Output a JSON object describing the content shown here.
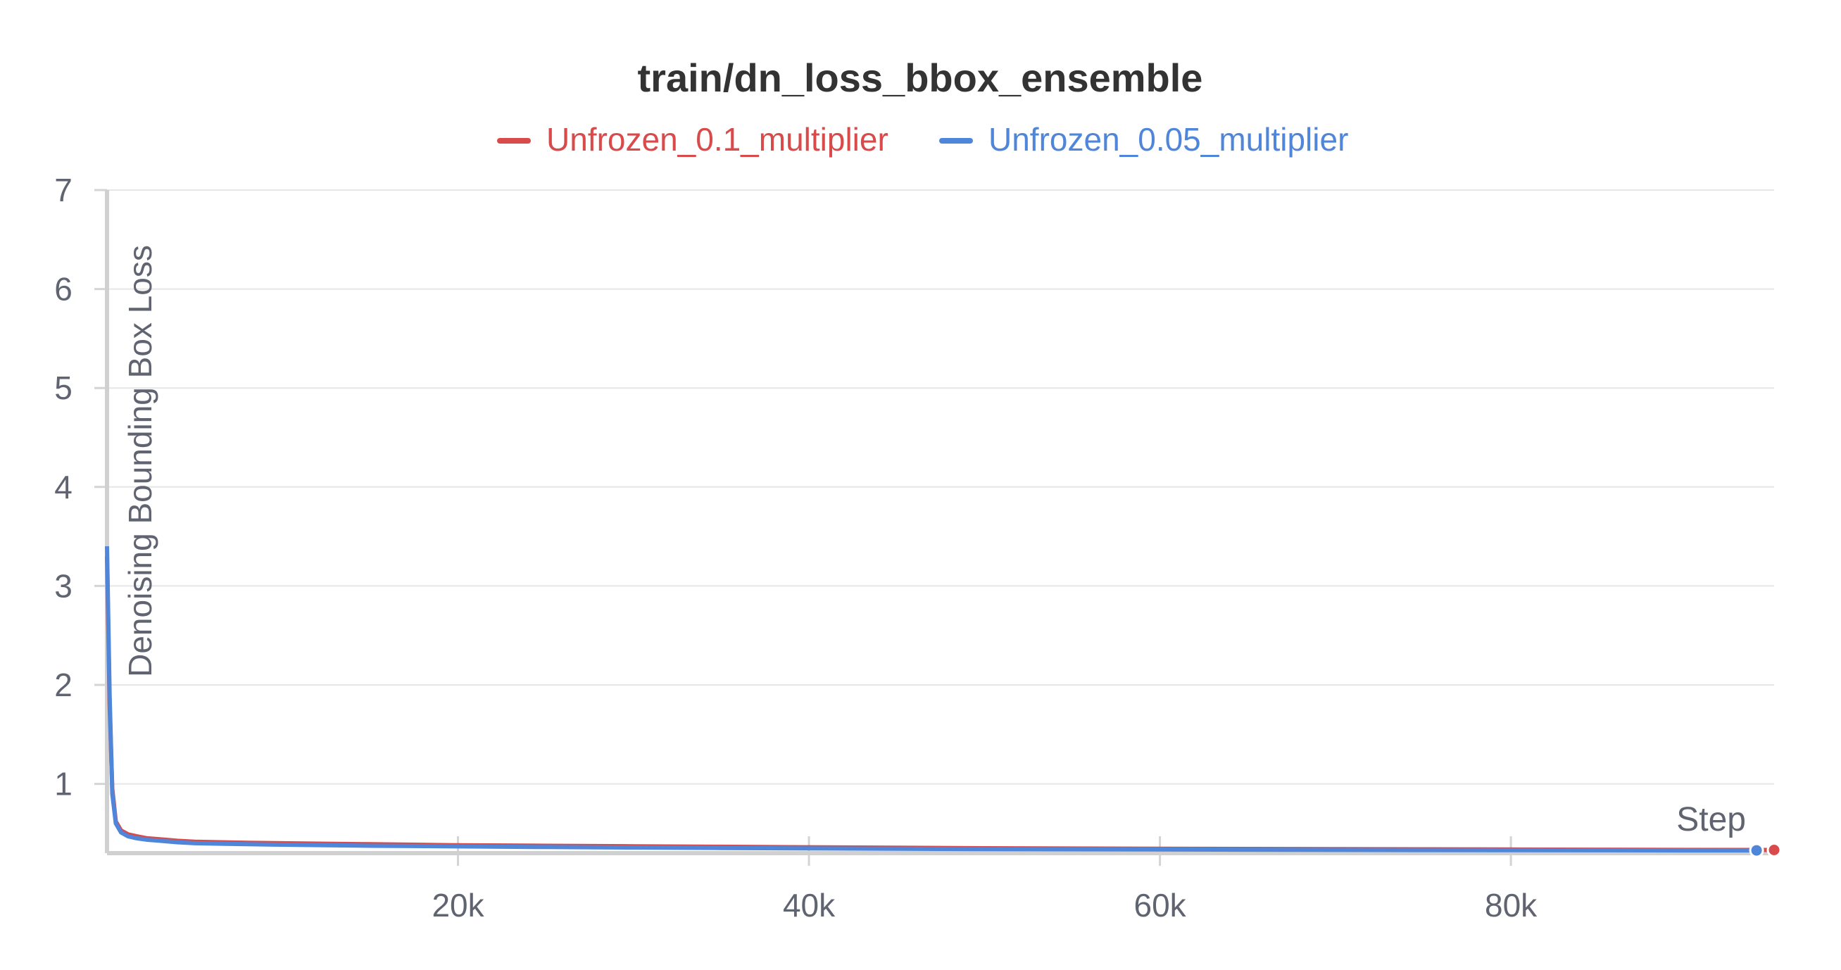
{
  "chart_data": {
    "type": "line",
    "title": "train/dn_loss_bbox_ensemble",
    "xlabel": "Step",
    "ylabel": "Denoising Bounding Box Loss",
    "xlim": [
      0,
      95000
    ],
    "ylim": [
      0.3,
      7
    ],
    "x_ticks": [
      20000,
      40000,
      60000,
      80000
    ],
    "x_tick_labels": [
      "20k",
      "40k",
      "60k",
      "80k"
    ],
    "y_ticks": [
      1,
      2,
      3,
      4,
      5,
      6,
      7
    ],
    "y_tick_labels": [
      "1",
      "2",
      "3",
      "4",
      "5",
      "6",
      "7"
    ],
    "grid": true,
    "legend_position": "top-center",
    "series": [
      {
        "name": "Unfrozen_0.1_multiplier",
        "color": "#d94b4b",
        "x": [
          0,
          150,
          300,
          500,
          800,
          1200,
          1700,
          2300,
          3000,
          4000,
          5000,
          6500,
          8000,
          10000,
          12500,
          15000,
          17500,
          20000,
          25000,
          30000,
          35000,
          40000,
          45000,
          50000,
          55000,
          60000,
          65000,
          70000,
          75000,
          80000,
          85000,
          90000,
          95000
        ],
        "y": [
          3.3,
          1.8,
          0.95,
          0.62,
          0.53,
          0.49,
          0.47,
          0.45,
          0.44,
          0.425,
          0.415,
          0.41,
          0.405,
          0.4,
          0.395,
          0.39,
          0.385,
          0.38,
          0.375,
          0.37,
          0.365,
          0.36,
          0.355,
          0.35,
          0.347,
          0.345,
          0.343,
          0.341,
          0.339,
          0.337,
          0.335,
          0.333,
          0.332
        ]
      },
      {
        "name": "Unfrozen_0.05_multiplier",
        "color": "#4f86d9",
        "x": [
          0,
          150,
          300,
          500,
          800,
          1200,
          1700,
          2300,
          3000,
          4000,
          5000,
          6500,
          8000,
          10000,
          12500,
          15000,
          17500,
          20000,
          25000,
          30000,
          35000,
          40000,
          45000,
          50000,
          55000,
          60000,
          65000,
          70000,
          75000,
          80000,
          85000,
          90000,
          94000
        ],
        "y": [
          3.4,
          1.9,
          0.9,
          0.6,
          0.51,
          0.47,
          0.45,
          0.435,
          0.425,
          0.41,
          0.4,
          0.395,
          0.39,
          0.385,
          0.38,
          0.375,
          0.372,
          0.368,
          0.362,
          0.357,
          0.352,
          0.348,
          0.344,
          0.341,
          0.339,
          0.337,
          0.335,
          0.333,
          0.331,
          0.33,
          0.329,
          0.328,
          0.328
        ]
      }
    ]
  }
}
